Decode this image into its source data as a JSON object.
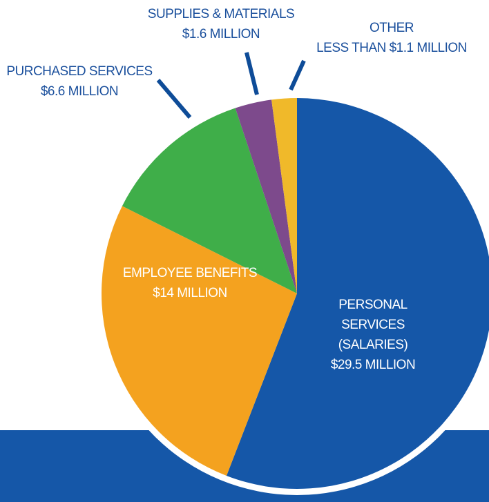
{
  "chart_data": {
    "type": "pie",
    "categories": [
      "PERSONAL SERVICES (SALARIES)",
      "EMPLOYEE BENEFITS",
      "PURCHASED SERVICES",
      "SUPPLIES & MATERIALS",
      "OTHER"
    ],
    "values": [
      29.5,
      14,
      6.6,
      1.6,
      1.1
    ],
    "value_labels": [
      "$29.5 MILLION",
      "$14 MILLION",
      "$6.6 MILLION",
      "$1.6 MILLION",
      "LESS THAN $1.1 MILLION"
    ],
    "colors": [
      "#1557a8",
      "#f4a21f",
      "#3fae49",
      "#7d4a8c",
      "#f0b92a"
    ]
  }
}
